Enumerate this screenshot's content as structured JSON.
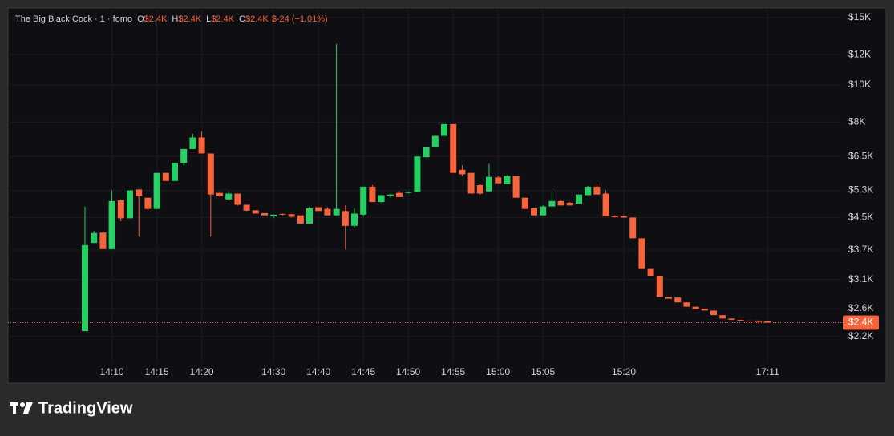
{
  "chart_data": {
    "type": "candlestick",
    "title": "The Big Black Cock · 1 · fomo",
    "ohlc_labels": [
      {
        "key": "O",
        "value": "$2.4K"
      },
      {
        "key": "H",
        "value": "$2.4K"
      },
      {
        "key": "L",
        "value": "$2.4K"
      },
      {
        "key": "C",
        "value": "$2.4K"
      }
    ],
    "change_label": "$-24 (−1.01%)",
    "up_color": "#26cf63",
    "down_color": "#f7633a",
    "log_scale": true,
    "grid": true,
    "ylim": [
      1900,
      15900
    ],
    "yticks": [
      {
        "value": 2200,
        "label": "$2.2K"
      },
      {
        "value": 2600,
        "label": "$2.6K"
      },
      {
        "value": 3100,
        "label": "$3.1K"
      },
      {
        "value": 3700,
        "label": "$3.7K"
      },
      {
        "value": 4500,
        "label": "$4.5K"
      },
      {
        "value": 5300,
        "label": "$5.3K"
      },
      {
        "value": 6500,
        "label": "$6.5K"
      },
      {
        "value": 8000,
        "label": "$8K"
      },
      {
        "value": 10000,
        "label": "$10K"
      },
      {
        "value": 12000,
        "label": "$12K"
      },
      {
        "value": 15000,
        "label": "$15K"
      }
    ],
    "categories": [
      null,
      null,
      null,
      "14:10",
      null,
      null,
      null,
      null,
      "14:15",
      null,
      null,
      null,
      null,
      "14:20",
      null,
      null,
      null,
      null,
      null,
      null,
      null,
      "14:30",
      null,
      null,
      null,
      null,
      "14:40",
      null,
      null,
      null,
      null,
      "14:45",
      null,
      null,
      null,
      null,
      "14:50",
      null,
      null,
      null,
      null,
      "14:55",
      null,
      null,
      null,
      null,
      "15:00",
      null,
      null,
      null,
      null,
      "15:05",
      null,
      null,
      null,
      null,
      null,
      null,
      null,
      null,
      "15:20",
      null,
      null,
      null,
      null,
      null,
      null,
      null,
      null,
      null,
      null,
      null,
      null,
      null,
      null,
      null,
      "17:11"
    ],
    "open": [
      2270,
      3860,
      4110,
      3720,
      4990,
      4480,
      5330,
      5070,
      4740,
      5890,
      5610,
      6250,
      6800,
      7290,
      6620,
      5220,
      5020,
      5200,
      4860,
      4700,
      4620,
      4530,
      4600,
      4590,
      4560,
      4340,
      4790,
      4740,
      4560,
      4680,
      4280,
      4580,
      5420,
      4940,
      5120,
      5220,
      5220,
      5250,
      6470,
      6870,
      7360,
      7900,
      6000,
      5890,
      5470,
      5270,
      5730,
      5500,
      5780,
      5070,
      4760,
      4560,
      4810,
      4970,
      4920,
      4890,
      5150,
      5420,
      5200,
      4540,
      4540,
      4500,
      3970,
      3300,
      3170,
      2790,
      2780,
      2700,
      2630,
      2600,
      2570,
      2500,
      2450,
      2430,
      2420,
      2420,
      2414
    ],
    "high": [
      4810,
      4150,
      4150,
      5300,
      5020,
      5300,
      5330,
      5070,
      5890,
      5890,
      6250,
      6800,
      7450,
      7550,
      6620,
      5250,
      5250,
      5200,
      4860,
      4710,
      4630,
      4580,
      4610,
      4600,
      4560,
      4810,
      4790,
      4790,
      12800,
      4840,
      4760,
      5420,
      5470,
      5150,
      5200,
      5270,
      5270,
      6500,
      6870,
      7390,
      7900,
      7900,
      6170,
      5890,
      5500,
      6220,
      5780,
      5810,
      5780,
      5070,
      4760,
      4840,
      5270,
      5000,
      4940,
      5170,
      5440,
      5520,
      5300,
      4560,
      4560,
      4500,
      3970,
      3300,
      3170,
      2790,
      2780,
      2700,
      2630,
      2600,
      2570,
      2500,
      2450,
      2430,
      2420,
      2420,
      2414
    ],
    "low": [
      2270,
      3860,
      3720,
      3720,
      4400,
      4480,
      4010,
      4690,
      4740,
      5610,
      5610,
      6150,
      6800,
      6620,
      4010,
      5090,
      4990,
      4840,
      4680,
      4610,
      4560,
      4480,
      4560,
      4500,
      4340,
      4340,
      4680,
      4560,
      4560,
      3720,
      4240,
      4530,
      4940,
      4920,
      5070,
      5090,
      5200,
      5250,
      6470,
      6870,
      7360,
      5890,
      5780,
      5200,
      5170,
      5270,
      5530,
      5500,
      5070,
      4740,
      4560,
      4560,
      4810,
      4840,
      4840,
      4890,
      5150,
      5170,
      4530,
      4500,
      4490,
      3970,
      3300,
      3170,
      2790,
      2760,
      2700,
      2630,
      2590,
      2570,
      2500,
      2450,
      2430,
      2420,
      2410,
      2400,
      2390
    ],
    "close": [
      3810,
      4100,
      3720,
      4970,
      4480,
      5300,
      5120,
      4740,
      5890,
      5610,
      6250,
      6800,
      7290,
      6620,
      5170,
      5120,
      5200,
      4860,
      4690,
      4610,
      4560,
      4580,
      4580,
      4520,
      4340,
      4760,
      4680,
      4560,
      4740,
      4280,
      4610,
      5420,
      4940,
      5150,
      5170,
      5090,
      5250,
      6500,
      6870,
      7360,
      7900,
      5890,
      5840,
      5200,
      5200,
      5750,
      5530,
      5780,
      5070,
      4740,
      4560,
      4810,
      4970,
      4840,
      4840,
      5170,
      5420,
      5170,
      4530,
      4510,
      4500,
      3970,
      3300,
      3170,
      2790,
      2760,
      2700,
      2630,
      2590,
      2570,
      2500,
      2450,
      2430,
      2420,
      2410,
      2400,
      2390
    ],
    "last_price": {
      "value": 2390,
      "label": "$2.4K"
    }
  },
  "branding": "TradingView"
}
